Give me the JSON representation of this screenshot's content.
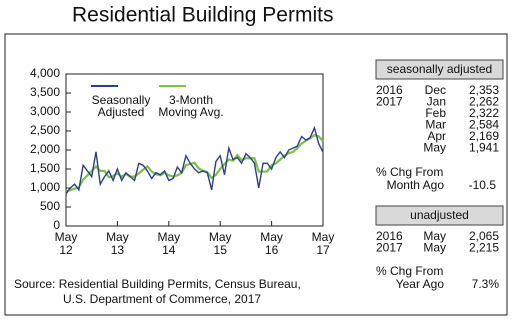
{
  "chart_data": {
    "type": "line",
    "title": "Residential Building Permits",
    "categories": [
      "May 12",
      null,
      null,
      null,
      null,
      null,
      null,
      null,
      null,
      null,
      null,
      null,
      "May 13",
      null,
      null,
      null,
      null,
      null,
      null,
      null,
      null,
      null,
      null,
      null,
      "May 14",
      null,
      null,
      null,
      null,
      null,
      null,
      null,
      null,
      null,
      null,
      null,
      "May 15",
      null,
      null,
      null,
      null,
      null,
      null,
      null,
      null,
      null,
      null,
      null,
      "May 16",
      null,
      null,
      null,
      null,
      null,
      null,
      null,
      null,
      null,
      null,
      null,
      "May 17"
    ],
    "series": [
      {
        "name": "Seasonally Adjusted",
        "color": "#2b3f8f",
        "values": [
          850,
          1000,
          1100,
          950,
          1600,
          1450,
          1300,
          1950,
          1100,
          1300,
          1450,
          1200,
          1500,
          1200,
          1400,
          1300,
          1200,
          1650,
          1600,
          1450,
          1250,
          1400,
          1350,
          1450,
          1200,
          1250,
          1550,
          1400,
          1850,
          1650,
          1500,
          1400,
          1450,
          1400,
          950,
          1700,
          1850,
          1350,
          2050,
          1750,
          1800,
          1650,
          1900,
          1800,
          1650,
          1000,
          1650,
          1650,
          1500,
          1800,
          1950,
          1800,
          2000,
          2050,
          2100,
          2353,
          2262,
          2322,
          2584,
          2169,
          1941
        ]
      },
      {
        "name": "3-Month Moving Avg.",
        "color": "#7dc242",
        "values": [
          900,
          950,
          983,
          1017,
          1217,
          1333,
          1450,
          1567,
          1450,
          1450,
          1283,
          1317,
          1383,
          1300,
          1367,
          1300,
          1300,
          1383,
          1483,
          1567,
          1433,
          1367,
          1333,
          1400,
          1333,
          1300,
          1333,
          1400,
          1600,
          1633,
          1667,
          1517,
          1450,
          1417,
          1267,
          1350,
          1500,
          1633,
          1750,
          1717,
          1867,
          1733,
          1783,
          1783,
          1783,
          1433,
          1433,
          1433,
          1600,
          1650,
          1750,
          1850,
          1917,
          1950,
          2050,
          2168,
          2245,
          2312,
          2389,
          2358,
          2231
        ]
      }
    ],
    "ylim": [
      0,
      4000
    ],
    "yticks": [
      0,
      500,
      {
        "value": 1000,
        "label": "1,000"
      },
      {
        "value": 1500,
        "label": "1,500"
      },
      {
        "value": 2000,
        "label": "2,000"
      },
      {
        "value": 2500,
        "label": "2,500"
      },
      {
        "value": 3000,
        "label": "3,000"
      },
      {
        "value": 3500,
        "label": "3,500"
      },
      {
        "value": 4000,
        "label": "4,000"
      }
    ],
    "grid": false,
    "source": [
      "Source:  Residential Building Permits, Census Bureau,",
      "U.S. Department of Commerce, 2017"
    ]
  },
  "side_panel": {
    "sa_header": "seasonally adjusted",
    "sa_rows": [
      [
        "2016",
        "Dec",
        "2,353"
      ],
      [
        "2017",
        "Jan",
        "2,262"
      ],
      [
        null,
        "Feb",
        "2,322"
      ],
      [
        null,
        "Mar",
        "2,584"
      ],
      [
        null,
        "Apr",
        "2,169"
      ],
      [
        null,
        "May",
        "1,941"
      ]
    ],
    "sa_change_label": [
      "% Chg From",
      "Month Ago"
    ],
    "sa_change": "-10.5",
    "ua_header": "unadjusted",
    "ua_rows": [
      [
        "2016",
        "May",
        "2,065"
      ],
      [
        "2017",
        "May",
        "2,215"
      ]
    ],
    "ua_change_label": [
      "% Chg From",
      "Year Ago"
    ],
    "ua_change": "7.3%"
  }
}
